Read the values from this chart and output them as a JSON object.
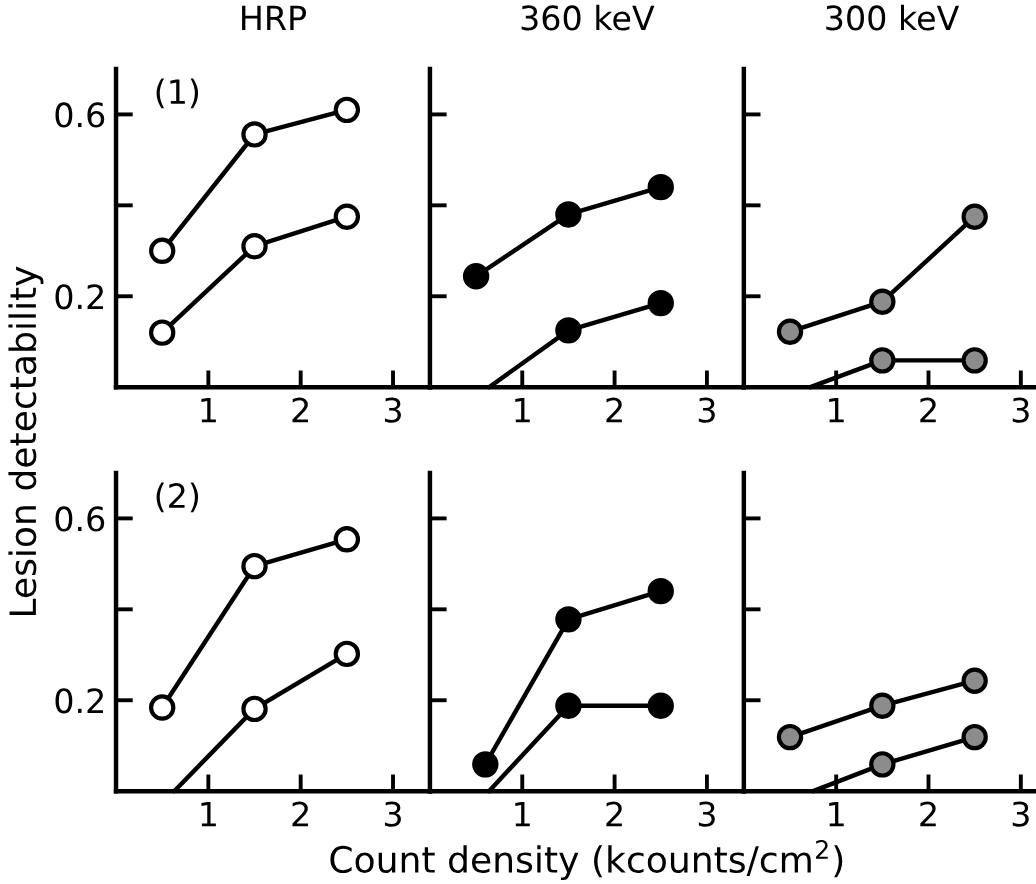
{
  "chart_data": [
    {
      "type": "line",
      "title": "HRP",
      "ylabel": "Lesion detectability",
      "annotations": [
        "(1)"
      ],
      "xlim": [
        0,
        3.4
      ],
      "ylim": [
        0,
        0.7
      ],
      "xticks": [
        1,
        2,
        3
      ],
      "yticks": [
        {
          "value": 0.2,
          "label": "0.2"
        },
        {
          "value": 0.4,
          "label": null
        },
        {
          "value": 0.6,
          "label": "0.6"
        }
      ],
      "marker": "circle",
      "grid": false,
      "legend": false,
      "series": [
        {
          "x": [
            0.5,
            1.5,
            2.5
          ],
          "values": [
            0.3,
            0.556,
            0.61
          ],
          "color": "#000000"
        },
        {
          "x": [
            0.5,
            1.5,
            2.5
          ],
          "values": [
            0.12,
            0.31,
            0.375
          ],
          "color": "#000000"
        }
      ]
    },
    {
      "type": "line",
      "title": "360 keV",
      "xlim": [
        0,
        3.4
      ],
      "ylim": [
        0,
        0.7
      ],
      "xticks": [
        1,
        2,
        3
      ],
      "yticks": [
        {
          "value": 0.2,
          "label": null
        },
        {
          "value": 0.4,
          "label": null
        },
        {
          "value": 0.6,
          "label": null
        }
      ],
      "tick_labels": "x",
      "marker": "circle",
      "grid": false,
      "legend": false,
      "series": [
        {
          "x": [
            0.5,
            1.5,
            2.5
          ],
          "values": [
            0.244,
            0.38,
            0.44
          ],
          "color": "#000000"
        },
        {
          "x": [
            0.64,
            1.5,
            2.5
          ],
          "values": [
            0,
            0.125,
            0.185
          ],
          "color": "#000000"
        }
      ]
    },
    {
      "type": "line",
      "title": "300 keV",
      "xlim": [
        0,
        3.2
      ],
      "ylim": [
        0,
        0.7
      ],
      "xticks": [
        1,
        2,
        3
      ],
      "yticks": [
        {
          "value": 0.2,
          "label": null
        },
        {
          "value": 0.4,
          "label": null
        },
        {
          "value": 0.6,
          "label": null
        }
      ],
      "tick_labels": "x",
      "marker": "circle",
      "grid": false,
      "legend": false,
      "series": [
        {
          "x": [
            0.5,
            1.5,
            2.5
          ],
          "values": [
            0.122,
            0.188,
            0.375
          ],
          "color": "#000000"
        },
        {
          "x": [
            0.72,
            1.5,
            2.5
          ],
          "values": [
            0,
            0.059,
            0.059
          ],
          "color": "#000000"
        }
      ]
    },
    {
      "type": "line",
      "annotations": [
        "(2)"
      ],
      "xlim": [
        0,
        3.4
      ],
      "ylim": [
        0,
        0.7
      ],
      "xticks": [
        1,
        2,
        3
      ],
      "yticks": [
        {
          "value": 0.2,
          "label": "0.2"
        },
        {
          "value": 0.4,
          "label": null
        },
        {
          "value": 0.6,
          "label": "0.6"
        }
      ],
      "marker": "circle",
      "grid": false,
      "legend": false,
      "series": [
        {
          "x": [
            0.5,
            1.5,
            2.5
          ],
          "values": [
            0.184,
            0.495,
            0.554
          ],
          "color": "#000000"
        },
        {
          "x": [
            0.63,
            1.5,
            2.5
          ],
          "values": [
            0,
            0.181,
            0.302
          ],
          "color": "#000000"
        }
      ]
    },
    {
      "type": "line",
      "xlabel": "Count density (kcounts/cm$^{2}$)",
      "xlim": [
        0,
        3.4
      ],
      "ylim": [
        0,
        0.7
      ],
      "xticks": [
        1,
        2,
        3
      ],
      "yticks": [
        {
          "value": 0.2,
          "label": null
        },
        {
          "value": 0.4,
          "label": null
        },
        {
          "value": 0.6,
          "label": null
        }
      ],
      "tick_labels": "x",
      "marker": "circle",
      "grid": false,
      "legend": false,
      "series": [
        {
          "x": [
            0.6,
            1.5,
            2.5
          ],
          "values": [
            0.059,
            0.378,
            0.44
          ],
          "color": "#000000"
        },
        {
          "x": [
            0.64,
            1.5,
            2.5
          ],
          "values": [
            0,
            0.188,
            0.188
          ],
          "color": "#000000"
        }
      ]
    },
    {
      "type": "line",
      "xlim": [
        0,
        3.2
      ],
      "ylim": [
        0,
        0.7
      ],
      "xticks": [
        1,
        2,
        3
      ],
      "yticks": [
        {
          "value": 0.2,
          "label": null
        },
        {
          "value": 0.4,
          "label": null
        },
        {
          "value": 0.6,
          "label": null
        }
      ],
      "tick_labels": "x",
      "marker": "circle",
      "grid": false,
      "legend": false,
      "series": [
        {
          "x": [
            0.5,
            1.5,
            2.5
          ],
          "values": [
            0.119,
            0.188,
            0.243
          ],
          "color": "#000000"
        },
        {
          "x": [
            0.75,
            1.5,
            2.5
          ],
          "values": [
            0,
            0.059,
            0.119
          ],
          "color": "#000000"
        }
      ]
    }
  ]
}
